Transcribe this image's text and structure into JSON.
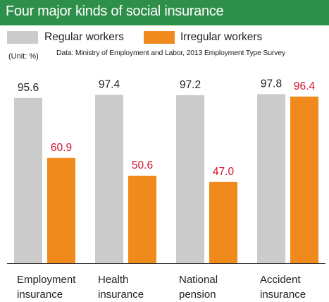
{
  "title": "Four major kinds of social insurance",
  "unit": "(Unit: %)",
  "source": "Data: Ministry of Employment and Labor, 2013 Employment Type Survey",
  "colors": {
    "header": "#2e8f4a",
    "regular": "#cbcbcb",
    "irregular": "#f08a1c",
    "irregular_label": "#d0142c",
    "text": "#222222"
  },
  "chart_data": {
    "type": "bar",
    "categories": [
      [
        "Employment",
        "insurance"
      ],
      [
        "Health",
        "insurance"
      ],
      [
        "National",
        "pension"
      ],
      [
        "Accident",
        "insurance"
      ]
    ],
    "series": [
      {
        "name": "Regular workers",
        "values": [
          95.6,
          97.4,
          97.2,
          97.8
        ]
      },
      {
        "name": "Irregular workers",
        "values": [
          60.9,
          50.6,
          47.0,
          96.4
        ]
      }
    ],
    "value_labels": [
      [
        "95.6",
        "97.4",
        "97.2",
        "97.8"
      ],
      [
        "60.9",
        "50.6",
        "47.0",
        "96.4"
      ]
    ],
    "ylim": [
      0,
      100
    ],
    "legend": "top",
    "grid": false
  }
}
